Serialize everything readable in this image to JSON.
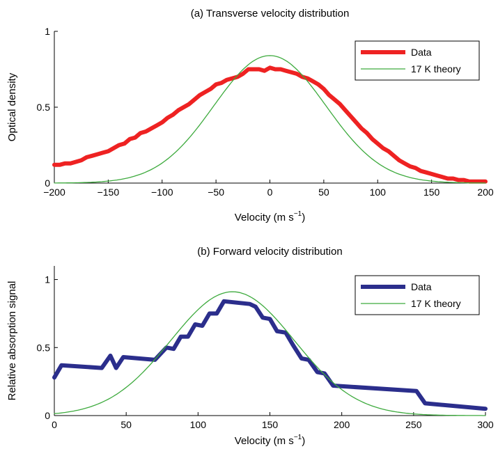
{
  "colors": {
    "data_a": "#ee2222",
    "data_b": "#2b2e8c",
    "theory": "#3daa3d"
  },
  "chart_data": [
    {
      "type": "line",
      "title": "(a) Transverse velocity distribution",
      "xlabel": "Velocity (m s",
      "xlabel_sup": "−1",
      "xlabel_close": ")",
      "ylabel": "Optical density",
      "xlim": [
        -200,
        200
      ],
      "ylim": [
        0,
        1
      ],
      "xticks": [
        -200,
        -150,
        -100,
        -50,
        0,
        50,
        100,
        150,
        200
      ],
      "xtick_labels": [
        "−200",
        "−150",
        "−100",
        "−50",
        "0",
        "50",
        "100",
        "150",
        "200"
      ],
      "yticks": [
        0,
        0.5,
        1
      ],
      "ytick_labels": [
        "0",
        "0.5",
        "1"
      ],
      "grid": false,
      "legend": "top-right",
      "series": [
        {
          "name": "Data",
          "style": "thick",
          "x": [
            -200,
            -195,
            -190,
            -185,
            -180,
            -175,
            -170,
            -165,
            -160,
            -155,
            -150,
            -145,
            -140,
            -135,
            -130,
            -125,
            -120,
            -115,
            -110,
            -105,
            -100,
            -95,
            -90,
            -85,
            -80,
            -75,
            -70,
            -65,
            -60,
            -55,
            -50,
            -45,
            -40,
            -35,
            -30,
            -25,
            -20,
            -15,
            -10,
            -5,
            0,
            5,
            10,
            15,
            20,
            25,
            30,
            35,
            40,
            45,
            50,
            55,
            60,
            65,
            70,
            75,
            80,
            85,
            90,
            95,
            100,
            105,
            110,
            115,
            120,
            125,
            130,
            135,
            140,
            145,
            150,
            155,
            160,
            165,
            170,
            175,
            180,
            185,
            190,
            195,
            200
          ],
          "y": [
            0.12,
            0.12,
            0.13,
            0.13,
            0.14,
            0.15,
            0.17,
            0.18,
            0.19,
            0.2,
            0.21,
            0.23,
            0.25,
            0.26,
            0.29,
            0.3,
            0.33,
            0.34,
            0.36,
            0.38,
            0.4,
            0.43,
            0.45,
            0.48,
            0.5,
            0.52,
            0.55,
            0.58,
            0.6,
            0.62,
            0.65,
            0.66,
            0.68,
            0.69,
            0.7,
            0.72,
            0.75,
            0.75,
            0.75,
            0.74,
            0.76,
            0.75,
            0.75,
            0.74,
            0.73,
            0.72,
            0.7,
            0.69,
            0.67,
            0.65,
            0.62,
            0.58,
            0.55,
            0.52,
            0.48,
            0.44,
            0.4,
            0.36,
            0.33,
            0.29,
            0.26,
            0.23,
            0.21,
            0.18,
            0.15,
            0.13,
            0.11,
            0.1,
            0.08,
            0.07,
            0.06,
            0.05,
            0.04,
            0.03,
            0.03,
            0.02,
            0.02,
            0.01,
            0.01,
            0.01,
            0.01
          ]
        },
        {
          "name": "17 K theory",
          "style": "thin",
          "curve": "gaussian",
          "amplitude": 0.84,
          "center": 0,
          "sigma": 52
        }
      ]
    },
    {
      "type": "line",
      "title": "(b) Forward velocity distribution",
      "xlabel": "Velocity (m s",
      "xlabel_sup": "−1",
      "xlabel_close": ")",
      "ylabel": "Relative absorption signal",
      "xlim": [
        0,
        300
      ],
      "ylim": [
        0,
        1.1
      ],
      "xticks": [
        0,
        50,
        100,
        150,
        200,
        250,
        300
      ],
      "xtick_labels": [
        "0",
        "50",
        "100",
        "150",
        "200",
        "250",
        "300"
      ],
      "yticks": [
        0,
        0.5,
        1
      ],
      "ytick_labels": [
        "0",
        "0.5",
        "1"
      ],
      "grid": false,
      "legend": "top-right",
      "series": [
        {
          "name": "Data",
          "style": "thick",
          "x": [
            0,
            5,
            33,
            39,
            43,
            48,
            70,
            78,
            83,
            88,
            93,
            98,
            103,
            108,
            113,
            118,
            136,
            140,
            145,
            150,
            155,
            161,
            166,
            172,
            177,
            183,
            188,
            194,
            252,
            258,
            300
          ],
          "y": [
            0.28,
            0.37,
            0.35,
            0.44,
            0.35,
            0.43,
            0.41,
            0.5,
            0.49,
            0.58,
            0.58,
            0.67,
            0.66,
            0.75,
            0.75,
            0.84,
            0.82,
            0.8,
            0.72,
            0.71,
            0.62,
            0.61,
            0.52,
            0.42,
            0.41,
            0.32,
            0.31,
            0.22,
            0.18,
            0.09,
            0.05
          ]
        },
        {
          "name": "17 K theory",
          "style": "thin",
          "curve": "gaussian",
          "amplitude": 0.91,
          "center": 124,
          "sigma": 43,
          "offset": 0.0
        }
      ]
    }
  ]
}
